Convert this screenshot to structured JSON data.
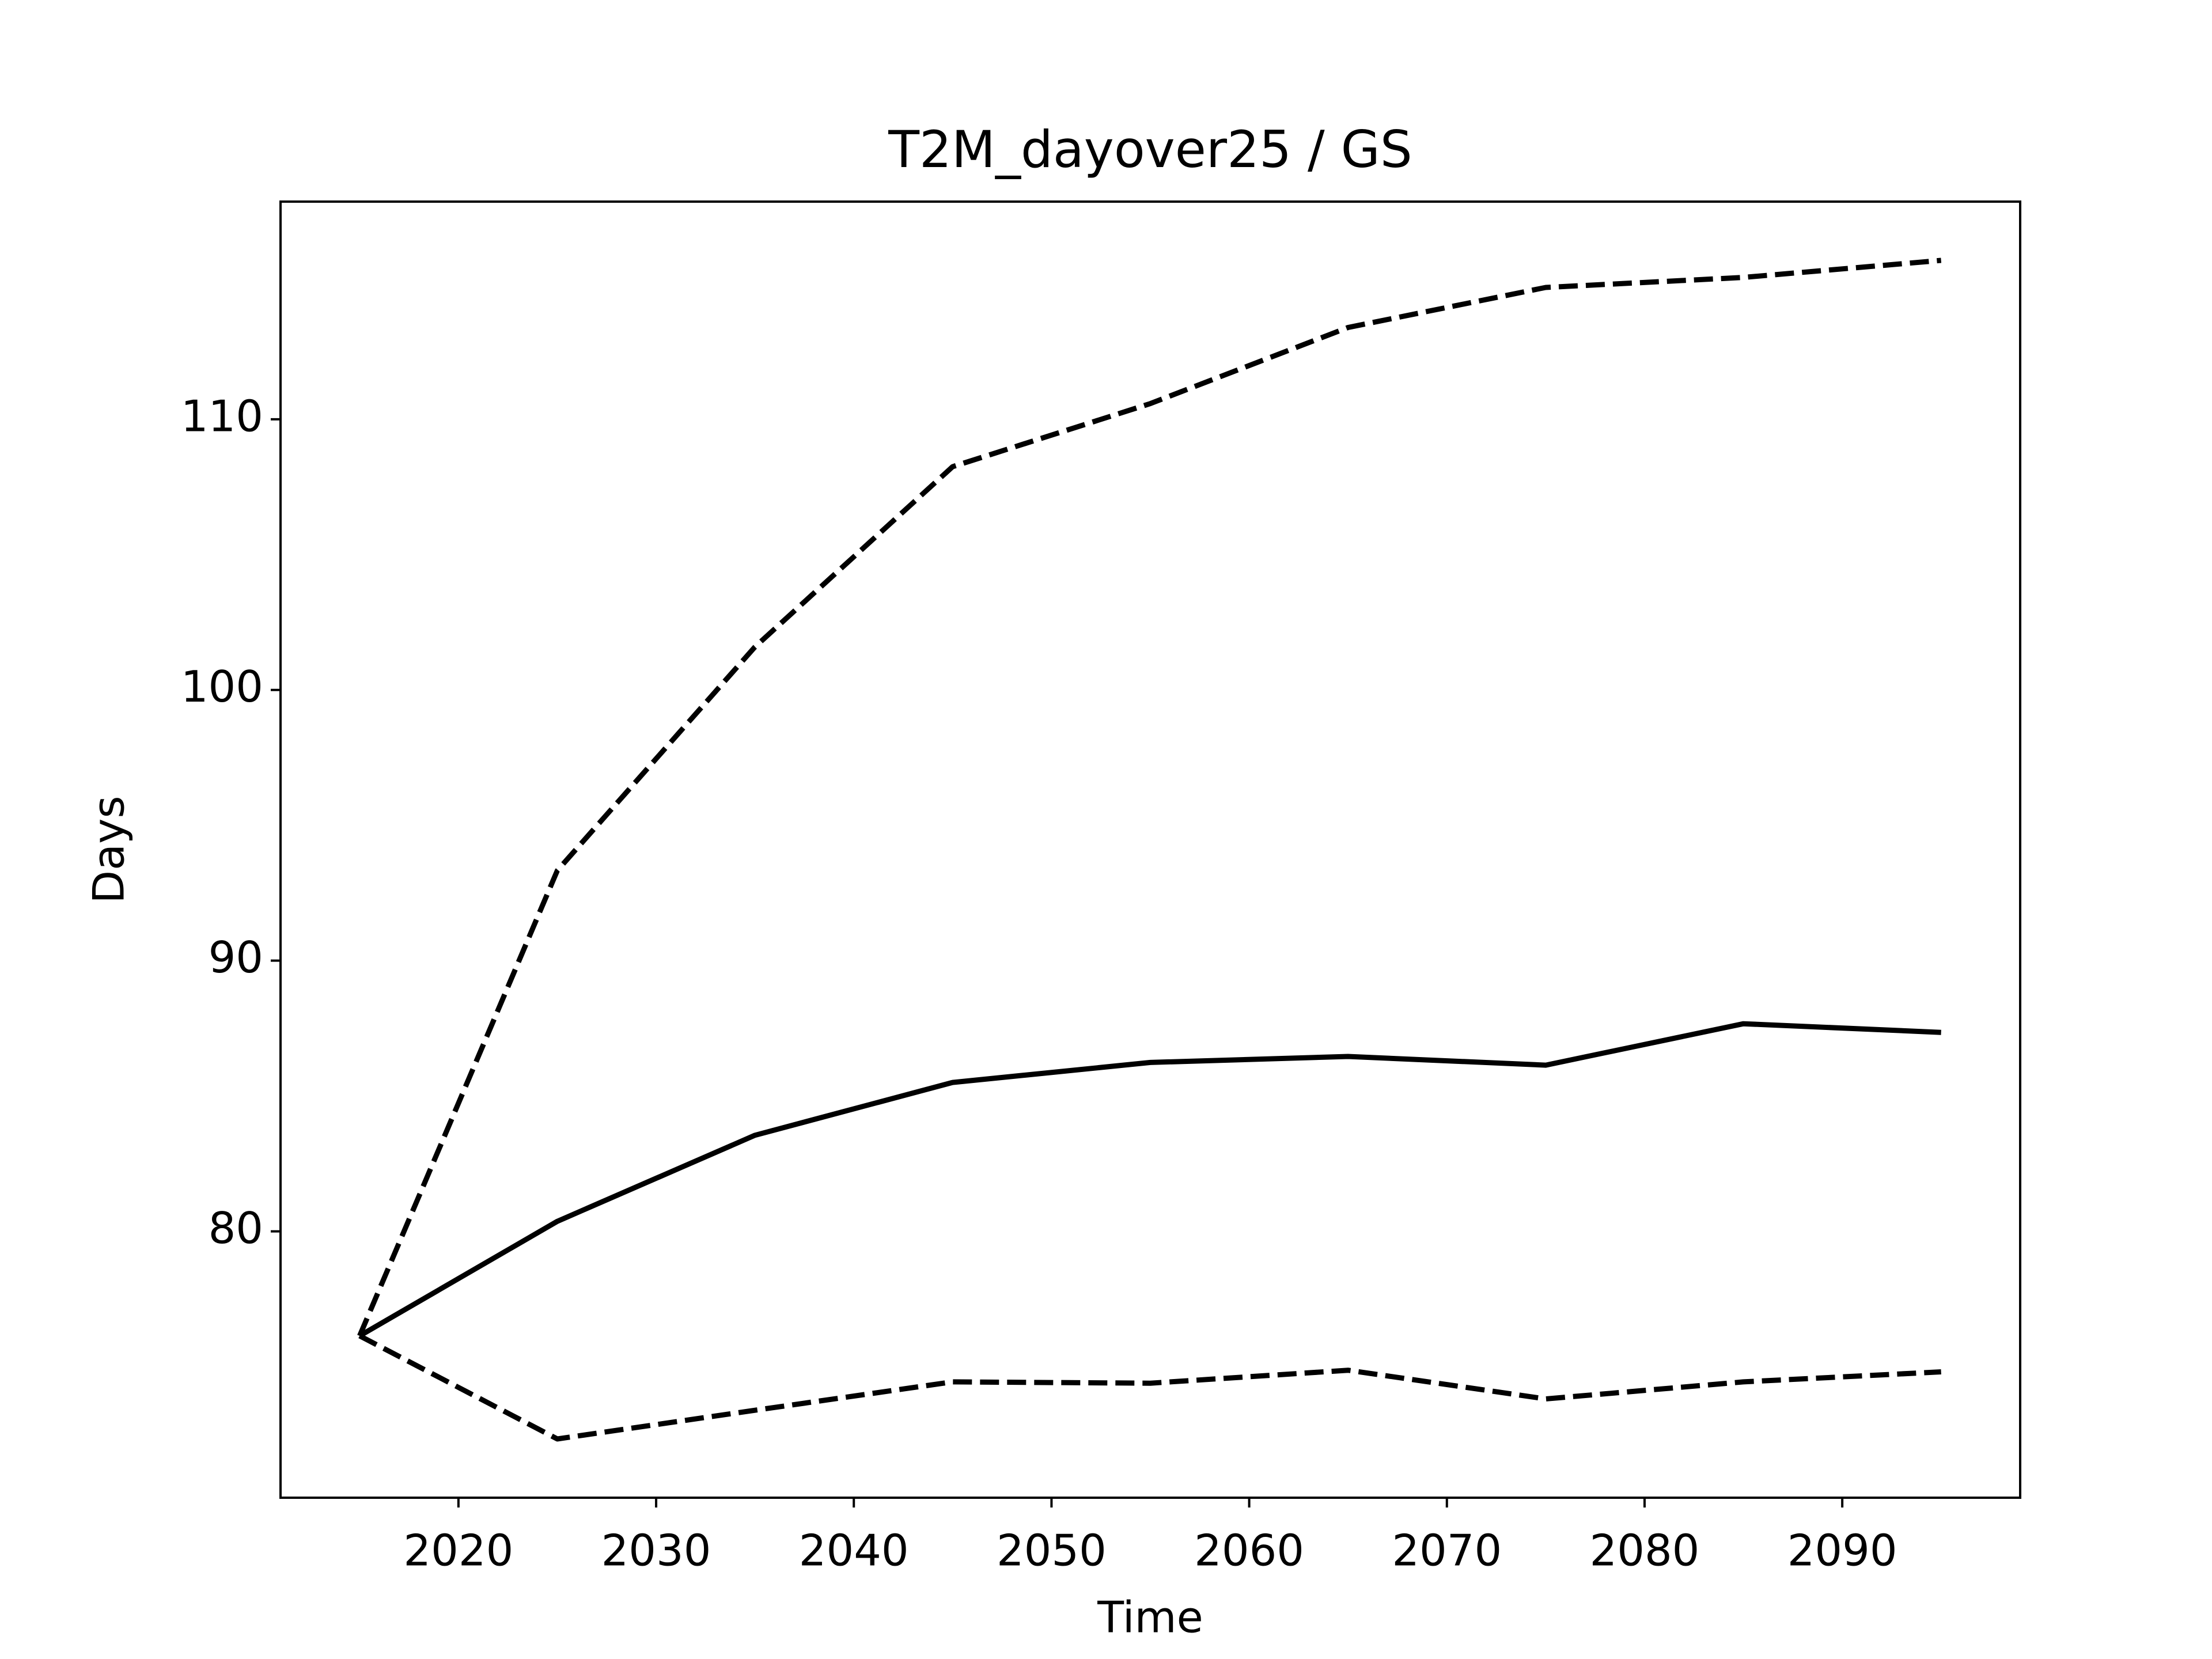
{
  "chart_data": {
    "type": "line",
    "title": "T2M_dayover25 / GS",
    "xlabel": "Time",
    "ylabel": "Days",
    "x": [
      2015,
      2025,
      2035,
      2045,
      2055,
      2065,
      2075,
      2085,
      2095
    ],
    "series": [
      {
        "color": "#000000",
        "linestyle": "solid",
        "values": [
          76.14,
          80.37,
          83.55,
          85.5,
          86.24,
          86.46,
          86.14,
          87.67,
          87.35
        ]
      },
      {
        "color": "#000000",
        "linestyle": "dashed",
        "values": [
          76.14,
          93.33,
          101.59,
          108.25,
          110.58,
          113.39,
          114.87,
          115.24,
          115.87
        ]
      },
      {
        "color": "#000000",
        "linestyle": "dashed",
        "values": [
          76.14,
          72.33,
          73.39,
          74.44,
          74.39,
          74.87,
          73.81,
          74.44,
          74.81
        ]
      }
    ],
    "xlim": [
      2011,
      2099
    ],
    "xticks": [
      2020,
      2030,
      2040,
      2050,
      2060,
      2070,
      2080,
      2090
    ],
    "ylim": [
      70.16,
      118.04
    ],
    "yticks": [
      80,
      90,
      100,
      110
    ],
    "grid": false
  }
}
